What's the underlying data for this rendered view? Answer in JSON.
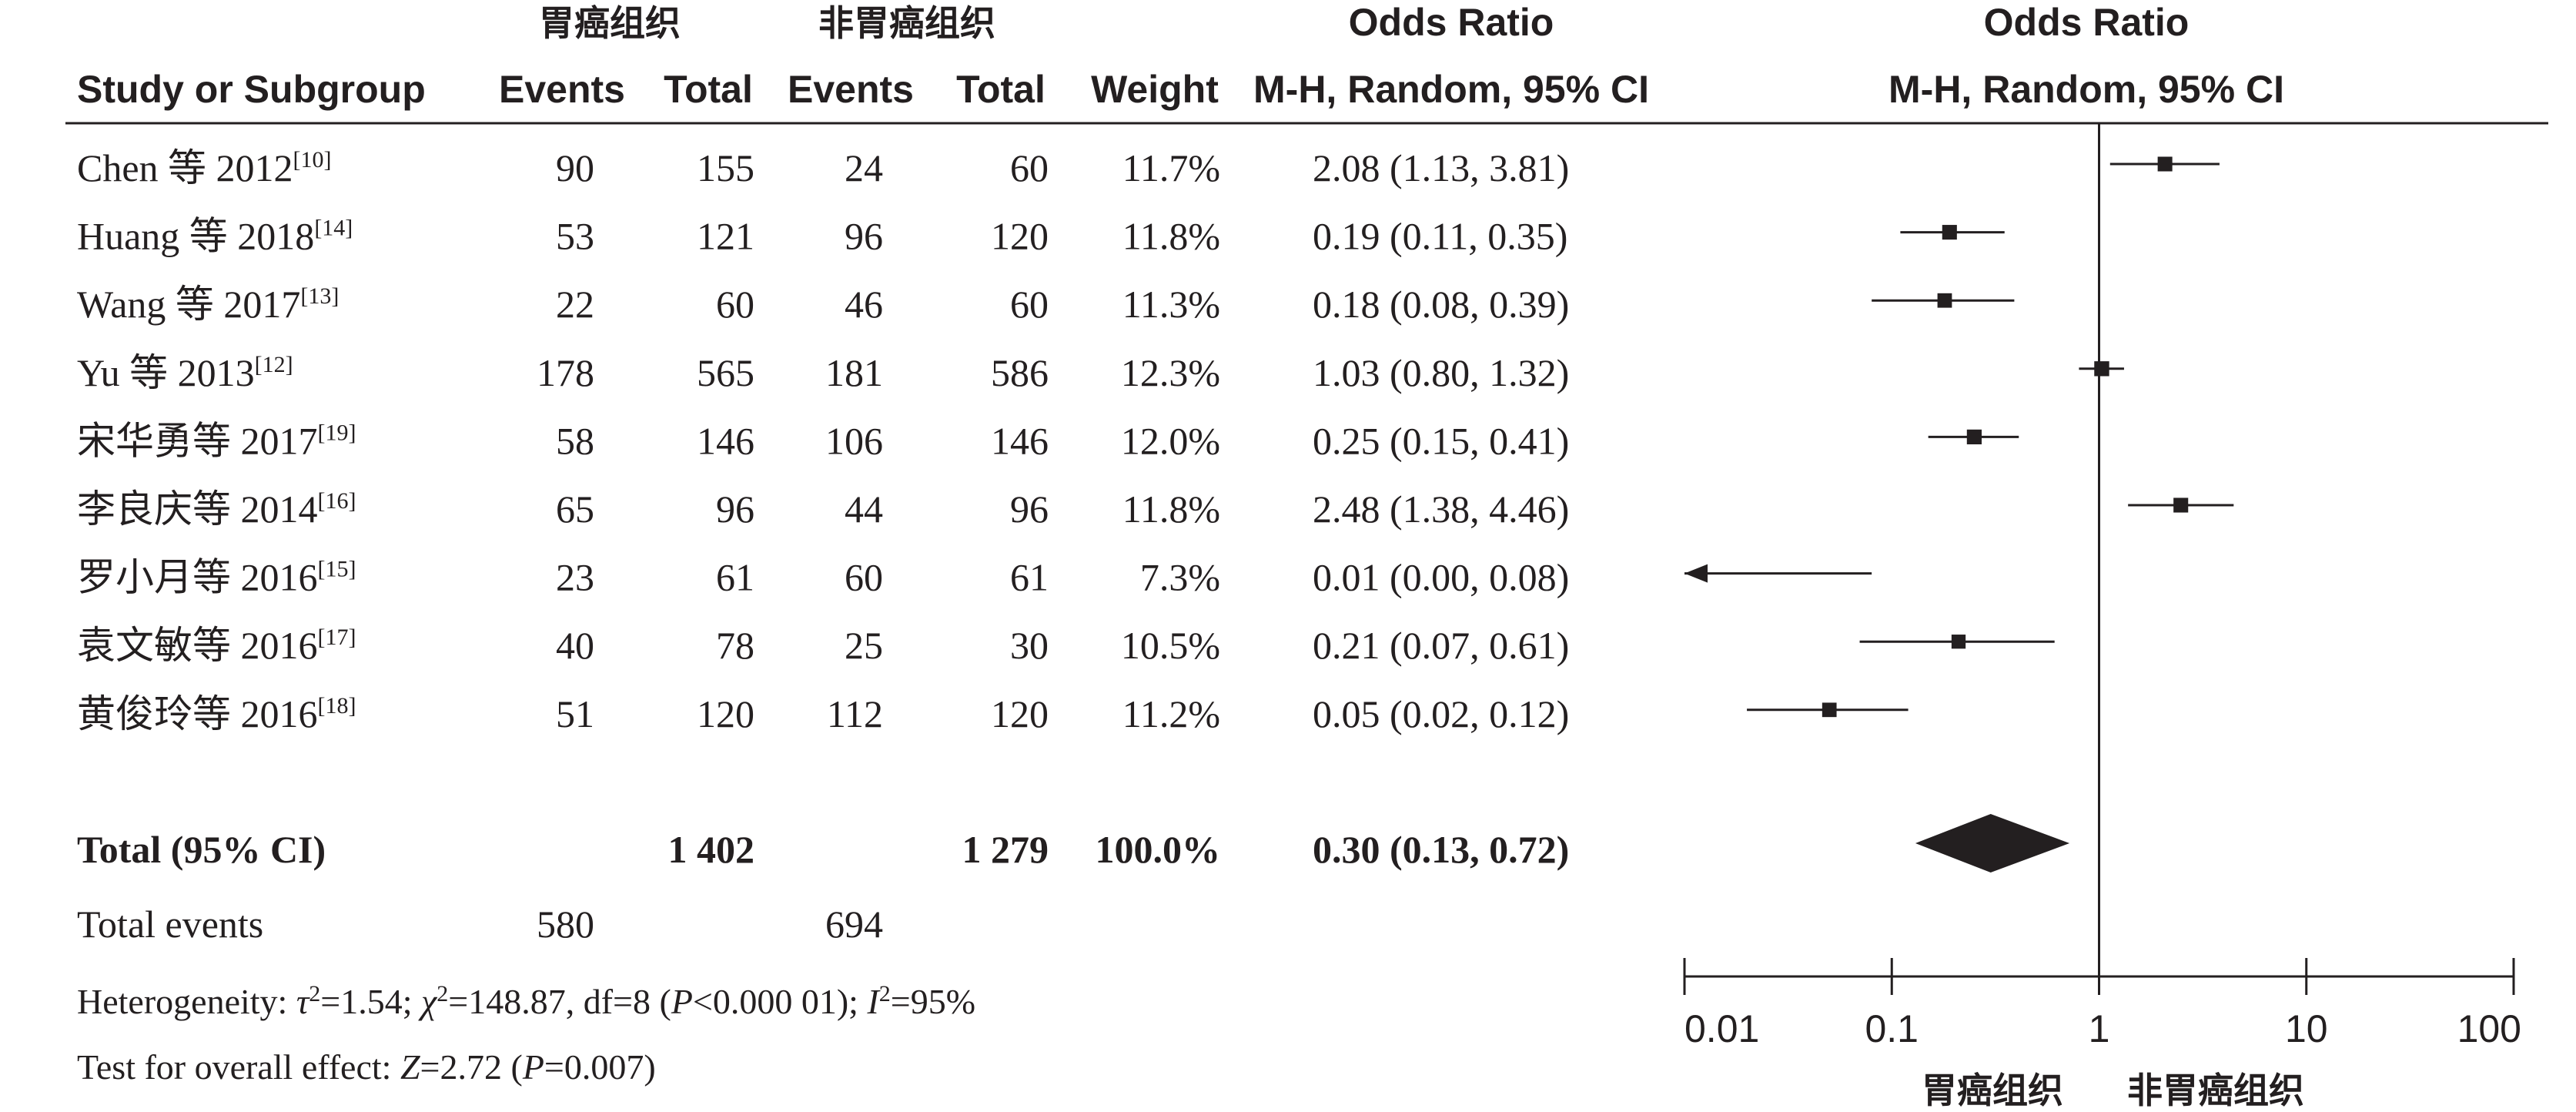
{
  "headers": {
    "group1": "胃癌组织",
    "group2": "非胃癌组织",
    "or_top": "Odds Ratio",
    "or_sub": "M-H, Random, 95% CI",
    "plot_top": "Odds Ratio",
    "plot_sub": "M-H, Random, 95% CI",
    "study": "Study or Subgroup",
    "events1": "Events",
    "total1": "Total",
    "events2": "Events",
    "total2": "Total",
    "weight": "Weight"
  },
  "chart_data": {
    "type": "forest",
    "scale": "log",
    "xlim": [
      0.01,
      100
    ],
    "ticks": [
      "0.01",
      "0.1",
      "1",
      "10",
      "100"
    ],
    "tick_values": [
      0.01,
      0.1,
      1,
      10,
      100
    ],
    "favours_left": "胃癌组织",
    "favours_right": "非胃癌组织",
    "studies": [
      {
        "name": "Chen 等 2012",
        "ref": "[10]",
        "e1": "90",
        "t1": "155",
        "e2": "24",
        "t2": "60",
        "weight": "11.7%",
        "ci_text": "2.08 (1.13, 3.81)",
        "or": 2.08,
        "lo": 1.13,
        "hi": 3.81
      },
      {
        "name": "Huang 等 2018",
        "ref": "[14]",
        "e1": "53",
        "t1": "121",
        "e2": "96",
        "t2": "120",
        "weight": "11.8%",
        "ci_text": "0.19 (0.11, 0.35)",
        "or": 0.19,
        "lo": 0.11,
        "hi": 0.35
      },
      {
        "name": "Wang 等 2017",
        "ref": "[13]",
        "e1": "22",
        "t1": "60",
        "e2": "46",
        "t2": "60",
        "weight": "11.3%",
        "ci_text": "0.18 (0.08, 0.39)",
        "or": 0.18,
        "lo": 0.08,
        "hi": 0.39
      },
      {
        "name": "Yu 等 2013",
        "ref": "[12]",
        "e1": "178",
        "t1": "565",
        "e2": "181",
        "t2": "586",
        "weight": "12.3%",
        "ci_text": "1.03 (0.80, 1.32)",
        "or": 1.03,
        "lo": 0.8,
        "hi": 1.32
      },
      {
        "name": "宋华勇等 2017",
        "ref": "[19]",
        "e1": "58",
        "t1": "146",
        "e2": "106",
        "t2": "146",
        "weight": "12.0%",
        "ci_text": "0.25 (0.15, 0.41)",
        "or": 0.25,
        "lo": 0.15,
        "hi": 0.41
      },
      {
        "name": "李良庆等 2014",
        "ref": "[16]",
        "e1": "65",
        "t1": "96",
        "e2": "44",
        "t2": "96",
        "weight": "11.8%",
        "ci_text": "2.48 (1.38, 4.46)",
        "or": 2.48,
        "lo": 1.38,
        "hi": 4.46
      },
      {
        "name": "罗小月等 2016",
        "ref": "[15]",
        "e1": "23",
        "t1": "61",
        "e2": "60",
        "t2": "61",
        "weight": "7.3%",
        "ci_text": "0.01 (0.00, 0.08)",
        "or": 0.01,
        "lo": 0.0,
        "hi": 0.08
      },
      {
        "name": "袁文敏等 2016",
        "ref": "[17]",
        "e1": "40",
        "t1": "78",
        "e2": "25",
        "t2": "30",
        "weight": "10.5%",
        "ci_text": "0.21 (0.07, 0.61)",
        "or": 0.21,
        "lo": 0.07,
        "hi": 0.61
      },
      {
        "name": "黄俊玲等 2016",
        "ref": "[18]",
        "e1": "51",
        "t1": "120",
        "e2": "112",
        "t2": "120",
        "weight": "11.2%",
        "ci_text": "0.05 (0.02, 0.12)",
        "or": 0.05,
        "lo": 0.02,
        "hi": 0.12
      }
    ],
    "total": {
      "label": "Total (95% CI)",
      "t1": "1 402",
      "t2": "1 279",
      "weight": "100.0%",
      "ci_text": "0.30 (0.13, 0.72)",
      "or": 0.3,
      "lo": 0.13,
      "hi": 0.72
    },
    "total_events": {
      "label": "Total events",
      "e1": "580",
      "e2": "694"
    }
  },
  "footer": {
    "het_lead": "Heterogeneity: ",
    "tau_sym": "τ",
    "tau_val": "=1.54; ",
    "chi_sym": "χ",
    "chi_val": "=148.87, df=8 (",
    "p_sym": "P",
    "p_val": "<0.000 01); ",
    "i_sym": "I",
    "i_val": "=95%",
    "sq": "2",
    "test_lead": "Test for overall effect: ",
    "z_sym": "Z",
    "z_val": "=2.72 (",
    "p2_sym": "P",
    "p2_val": "=0.007)"
  },
  "colors": {
    "ink": "#231f20"
  }
}
